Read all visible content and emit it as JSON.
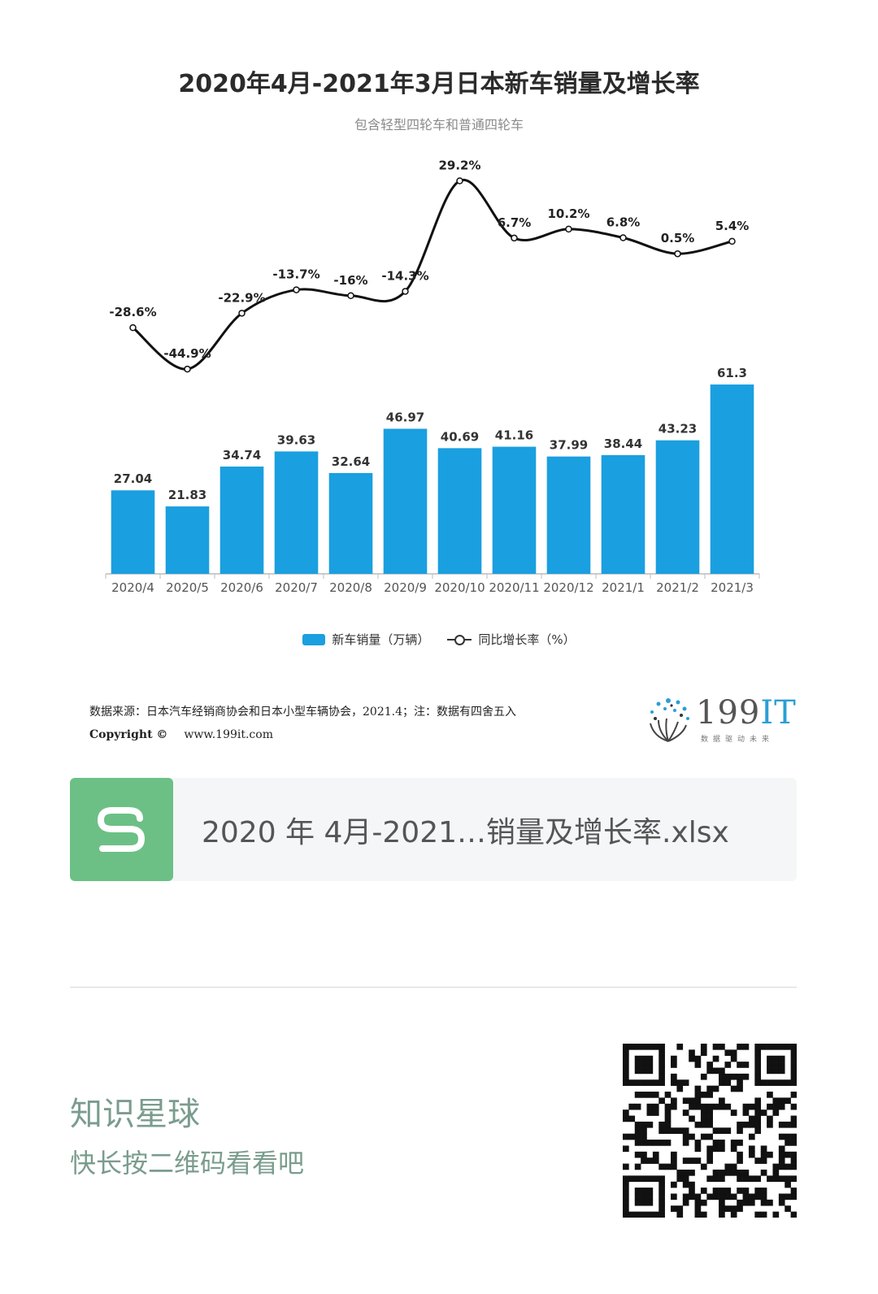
{
  "chart_data": {
    "type": "bar",
    "title": "2020年4月-2021年3月日本新车销量及增长率",
    "subtitle": "包含轻型四轮车和普通四轮车",
    "categories": [
      "2020/4",
      "2020/5",
      "2020/6",
      "2020/7",
      "2020/8",
      "2020/9",
      "2020/10",
      "2020/11",
      "2020/12",
      "2021/1",
      "2021/2",
      "2021/3"
    ],
    "series": [
      {
        "name": "新车销量（万辆）",
        "type": "bar",
        "color": "#1a9fe0",
        "values": [
          27.04,
          21.83,
          34.74,
          39.63,
          32.64,
          46.97,
          40.69,
          41.16,
          37.99,
          38.44,
          43.23,
          61.3
        ],
        "labels": [
          "27.04",
          "21.83",
          "34.74",
          "39.63",
          "32.64",
          "46.97",
          "40.69",
          "41.16",
          "37.99",
          "38.44",
          "43.23",
          "61.3"
        ]
      },
      {
        "name": "同比增长率（%）",
        "type": "line",
        "color": "#111111",
        "values": [
          -28.6,
          -44.9,
          -22.9,
          -13.7,
          -16,
          -14.3,
          29.2,
          6.7,
          10.2,
          6.8,
          0.5,
          5.4
        ],
        "labels": [
          "-28.6%",
          "-44.9%",
          "-22.9%",
          "-13.7%",
          "-16%",
          "-14.3%",
          "29.2%",
          "6.7%",
          "10.2%",
          "6.8%",
          "0.5%",
          "5.4%"
        ]
      }
    ],
    "ylim_bar": [
      0,
      70
    ],
    "ylim_line": [
      -50,
      30
    ],
    "legend_position": "bottom",
    "grid": false
  },
  "source": {
    "line": "数据来源：日本汽车经销商协会和日本小型车辆协会，2021.4；注：数据有四舍五入",
    "copyright": "Copyright ©",
    "website": "www.199it.com"
  },
  "logo": {
    "number": "199",
    "letters": "IT",
    "tagline": "数据驱动未来"
  },
  "file": {
    "icon_letter": "S",
    "name": "2020 年 4月-2021…销量及增长率.xlsx"
  },
  "footer": {
    "title": "知识星球",
    "subtitle": "快长按二维码看看吧"
  },
  "icons": {
    "file": "spreadsheet-icon",
    "logo": "dandelion-icon",
    "qr": "qr-code-icon"
  }
}
